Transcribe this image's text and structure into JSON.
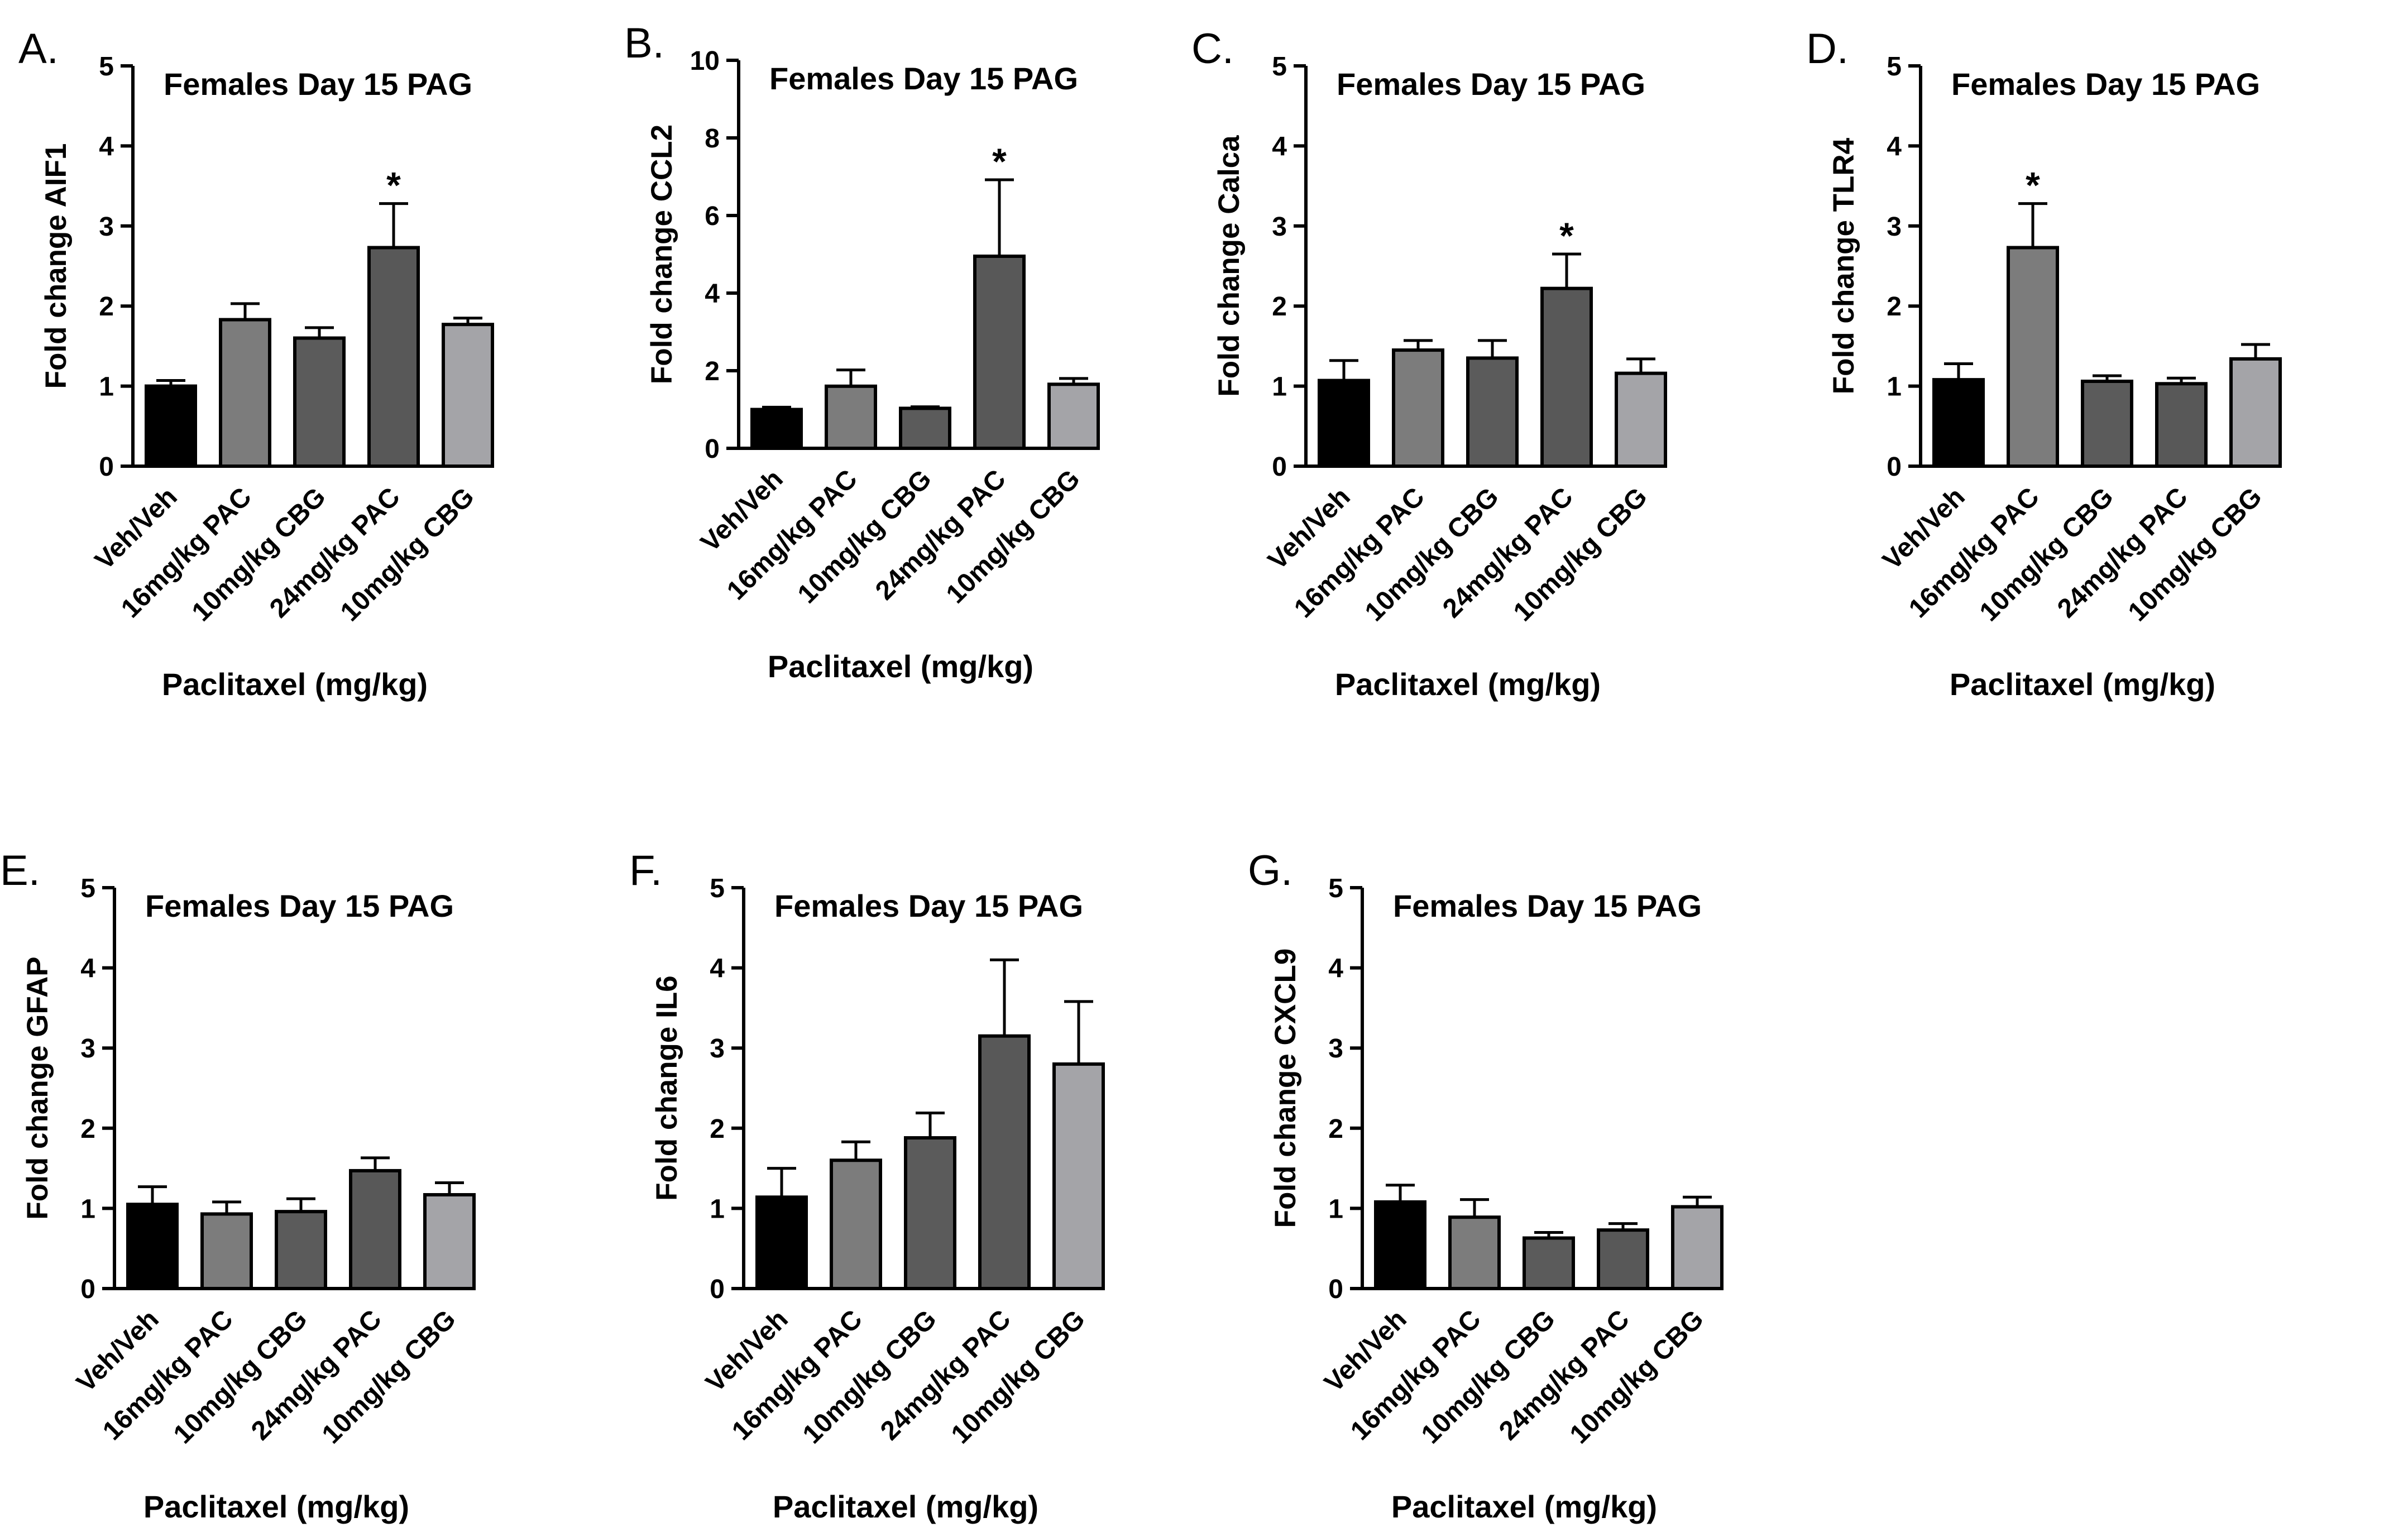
{
  "figure": {
    "panel_letters": [
      "A.",
      "B.",
      "C.",
      "D.",
      "E.",
      "F.",
      "G."
    ],
    "colors": {
      "veh": "#000000",
      "pac16": "#7c7c7c",
      "cbg10": "#5b5b5b",
      "pac24": "#585858",
      "cbg10b": "#a4a4a8",
      "axis": "#000000",
      "background": "#ffffff"
    }
  },
  "chart_data": [
    {
      "panel": "A.",
      "type": "bar",
      "title": "Females Day 15 PAG",
      "ylabel": "Fold change AIF1",
      "xlabel": "Paclitaxel (mg/kg)",
      "categories": [
        "Veh/Veh",
        "16mg/kg PAC",
        "10mg/kg CBG",
        "24mg/kg PAC",
        "10mg/kg CBG"
      ],
      "values": [
        1.0,
        1.83,
        1.6,
        2.73,
        1.77
      ],
      "errors": [
        0.07,
        0.2,
        0.13,
        0.55,
        0.08
      ],
      "significance": [
        "",
        "",
        "",
        "*",
        ""
      ],
      "ylim": [
        0,
        5
      ],
      "yticks": [
        "0",
        "1",
        "2",
        "3",
        "4",
        "5"
      ],
      "grid": false
    },
    {
      "panel": "B.",
      "type": "bar",
      "title": "Females Day 15 PAG",
      "ylabel": "Fold change CCL2",
      "xlabel": "Paclitaxel (mg/kg)",
      "categories": [
        "Veh/Veh",
        "16mg/kg PAC",
        "10mg/kg CBG",
        "24mg/kg PAC",
        "10mg/kg CBG"
      ],
      "values": [
        1.0,
        1.6,
        1.03,
        4.95,
        1.65
      ],
      "errors": [
        0.06,
        0.42,
        0.04,
        1.97,
        0.15
      ],
      "significance": [
        "",
        "",
        "",
        "*",
        ""
      ],
      "ylim": [
        0,
        10
      ],
      "yticks": [
        "0",
        "2",
        "4",
        "6",
        "8",
        "10"
      ],
      "grid": false
    },
    {
      "panel": "C.",
      "type": "bar",
      "title": "Females Day 15 PAG",
      "ylabel": "Fold change Calca",
      "xlabel": "Paclitaxel (mg/kg)",
      "categories": [
        "Veh/Veh",
        "16mg/kg PAC",
        "10mg/kg CBG",
        "24mg/kg PAC",
        "10mg/kg CBG"
      ],
      "values": [
        1.07,
        1.45,
        1.35,
        2.22,
        1.16
      ],
      "errors": [
        0.25,
        0.12,
        0.22,
        0.43,
        0.18
      ],
      "significance": [
        "",
        "",
        "",
        "*",
        ""
      ],
      "ylim": [
        0,
        5
      ],
      "yticks": [
        "0",
        "1",
        "2",
        "3",
        "4",
        "5"
      ],
      "grid": false
    },
    {
      "panel": "D.",
      "type": "bar",
      "title": "Females Day 15 PAG",
      "ylabel": "Fold change  TLR4",
      "xlabel": "Paclitaxel (mg/kg)",
      "categories": [
        "Veh/Veh",
        "16mg/kg PAC",
        "10mg/kg CBG",
        "24mg/kg PAC",
        "10mg/kg CBG"
      ],
      "values": [
        1.08,
        2.73,
        1.06,
        1.03,
        1.34
      ],
      "errors": [
        0.2,
        0.55,
        0.07,
        0.07,
        0.18
      ],
      "significance": [
        "",
        "*",
        "",
        "",
        ""
      ],
      "ylim": [
        0,
        5
      ],
      "yticks": [
        "0",
        "1",
        "2",
        "3",
        "4",
        "5"
      ],
      "grid": false
    },
    {
      "panel": "E.",
      "type": "bar",
      "title": "Females Day 15 PAG",
      "ylabel": "Fold change GFAP",
      "xlabel": "Paclitaxel (mg/kg)",
      "categories": [
        "Veh/Veh",
        "16mg/kg PAC",
        "10mg/kg CBG",
        "24mg/kg PAC",
        "10mg/kg CBG"
      ],
      "values": [
        1.05,
        0.93,
        0.96,
        1.47,
        1.17
      ],
      "errors": [
        0.22,
        0.15,
        0.16,
        0.16,
        0.15
      ],
      "significance": [
        "",
        "",
        "",
        "",
        ""
      ],
      "ylim": [
        0,
        5
      ],
      "yticks": [
        "0",
        "1",
        "2",
        "3",
        "4",
        "5"
      ],
      "grid": false
    },
    {
      "panel": "F.",
      "type": "bar",
      "title": "Females Day 15 PAG",
      "ylabel": "Fold change IL6",
      "xlabel": "Paclitaxel (mg/kg)",
      "categories": [
        "Veh/Veh",
        "16mg/kg PAC",
        "10mg/kg CBG",
        "24mg/kg PAC",
        "10mg/kg CBG"
      ],
      "values": [
        1.14,
        1.6,
        1.88,
        3.15,
        2.8
      ],
      "errors": [
        0.36,
        0.23,
        0.31,
        0.95,
        0.78
      ],
      "significance": [
        "",
        "",
        "",
        "",
        ""
      ],
      "ylim": [
        0,
        5
      ],
      "yticks": [
        "0",
        "1",
        "2",
        "3",
        "4",
        "5"
      ],
      "grid": false
    },
    {
      "panel": "G.",
      "type": "bar",
      "title": "Females Day 15 PAG",
      "ylabel": "Fold change CXCL9",
      "xlabel": "Paclitaxel (mg/kg)",
      "categories": [
        "Veh/Veh",
        "16mg/kg PAC",
        "10mg/kg CBG",
        "24mg/kg PAC",
        "10mg/kg CBG"
      ],
      "values": [
        1.08,
        0.89,
        0.63,
        0.73,
        1.02
      ],
      "errors": [
        0.21,
        0.22,
        0.07,
        0.08,
        0.12
      ],
      "significance": [
        "",
        "",
        "",
        "",
        ""
      ],
      "ylim": [
        0,
        5
      ],
      "yticks": [
        "0",
        "1",
        "2",
        "3",
        "4",
        "5"
      ],
      "grid": false
    }
  ]
}
